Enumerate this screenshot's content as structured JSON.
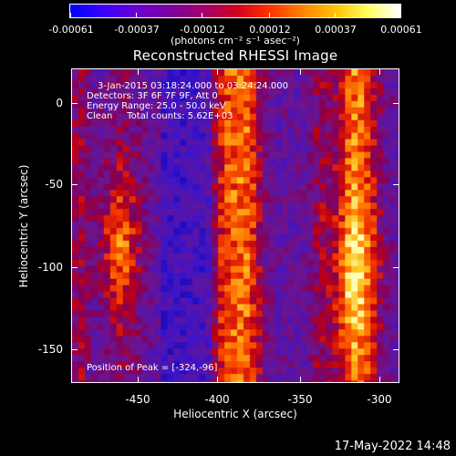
{
  "colorbar": {
    "tick_labels": [
      "-0.00061",
      "-0.00037",
      "-0.00012",
      "0.00012",
      "0.00037",
      "0.00061"
    ],
    "unit_label": "(photons cm⁻² s⁻¹ asec⁻²)",
    "colors": [
      "#0000ff",
      "#3a00ff",
      "#6a00d0",
      "#7a00a0",
      "#a00070",
      "#d00020",
      "#ff3000",
      "#ff8000",
      "#ffc000",
      "#ffff60",
      "#ffffff"
    ]
  },
  "image": {
    "title": "Reconstructed RHESSI Image",
    "annotations": {
      "time_range": "3-Jan-2015 03:18:24.000 to 03:24:24.000",
      "detectors": "Detectors: 3F 6F 7F 9F, Att 0",
      "energy_range": "Energy Range: 25.0 - 50.0 keV",
      "algorithm": "Clean     Total counts: 5.62E+03",
      "peak": "Position of Peak = [-324,-96]"
    },
    "x_axis": {
      "label": "Heliocentric X (arcsec)",
      "ticks": [
        "-450",
        "-400",
        "-350",
        "-300"
      ]
    },
    "y_axis": {
      "label": "Heliocentric Y (arcsec)",
      "ticks": [
        "0",
        "-50",
        "-100",
        "-150"
      ]
    }
  },
  "footer": {
    "timestamp": "17-May-2022 14:48"
  }
}
